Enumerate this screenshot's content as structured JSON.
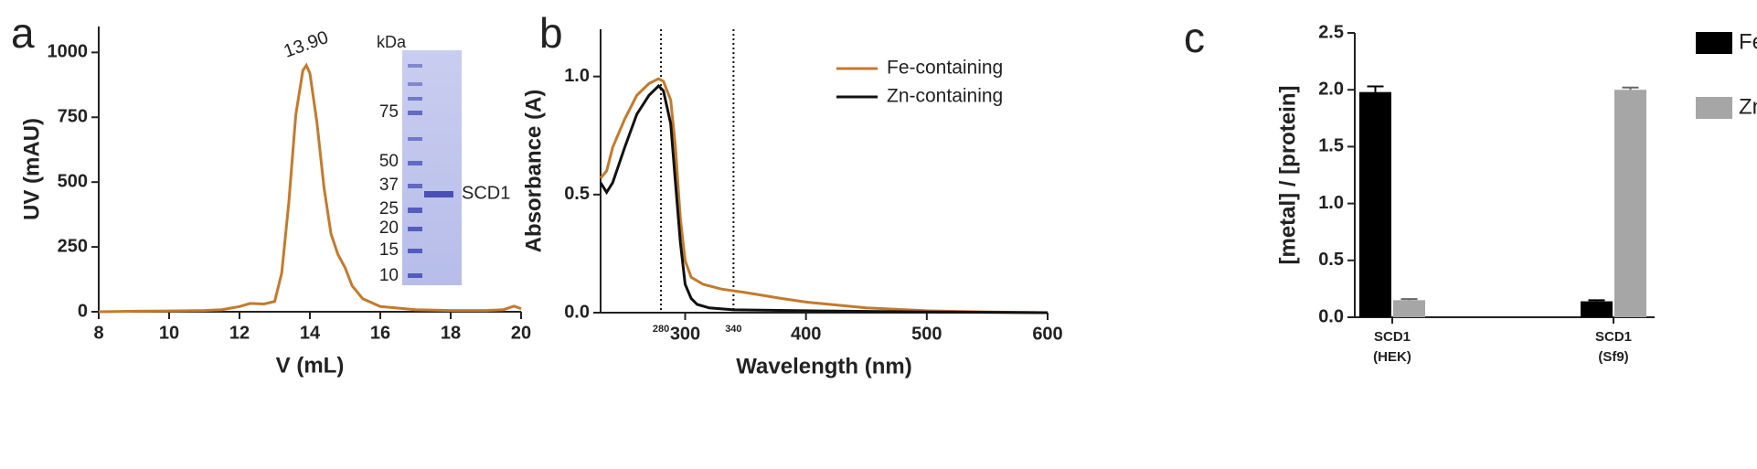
{
  "chart_data": [
    {
      "type": "line",
      "panel_label": "a",
      "x_label": "V (mL)",
      "y_label": "UV (mAU)",
      "xlim": [
        8,
        20
      ],
      "xticks": [
        8,
        10,
        12,
        14,
        16,
        18,
        20
      ],
      "ylim": [
        0,
        1100
      ],
      "yticks": [
        0,
        250,
        500,
        750,
        1000
      ],
      "annotation": "13.90",
      "series": [
        {
          "color": "#c47a2c",
          "x": [
            8,
            9,
            10,
            11,
            11.5,
            12,
            12.3,
            12.7,
            13.0,
            13.2,
            13.4,
            13.6,
            13.8,
            13.9,
            14.0,
            14.2,
            14.4,
            14.6,
            14.8,
            15.0,
            15.2,
            15.5,
            16,
            17,
            18,
            19,
            19.5,
            19.8,
            20
          ],
          "values": [
            0,
            2,
            3,
            5,
            8,
            20,
            32,
            30,
            40,
            150,
            420,
            760,
            930,
            950,
            920,
            730,
            480,
            300,
            220,
            170,
            100,
            50,
            20,
            8,
            5,
            5,
            8,
            22,
            12
          ]
        }
      ],
      "inset": {
        "title": "kDa",
        "markers": [
          75,
          50,
          37,
          25,
          20,
          15,
          10
        ],
        "band_label": "SCD1"
      }
    },
    {
      "type": "line",
      "panel_label": "b",
      "x_label": "Wavelength (nm)",
      "y_label": "Absorbance (A)",
      "xlim": [
        230,
        600
      ],
      "xticks": [
        300,
        400,
        500,
        600
      ],
      "ylim": [
        0,
        1.2
      ],
      "yticks": [
        {
          "value": 0,
          "label": "0.0"
        },
        0.5,
        {
          "value": 1,
          "label": "1.0"
        }
      ],
      "markers": [
        280,
        340
      ],
      "series": [
        {
          "name": "Fe-containing",
          "color": "#c47a2c",
          "x": [
            230,
            235,
            240,
            250,
            260,
            270,
            278,
            282,
            288,
            292,
            296,
            300,
            305,
            315,
            330,
            350,
            380,
            400,
            450,
            500,
            550,
            600
          ],
          "values": [
            0.57,
            0.6,
            0.7,
            0.82,
            0.92,
            0.97,
            0.99,
            0.98,
            0.9,
            0.7,
            0.4,
            0.22,
            0.15,
            0.12,
            0.1,
            0.085,
            0.06,
            0.045,
            0.02,
            0.008,
            0.003,
            0
          ]
        },
        {
          "name": "Zn-containing",
          "color": "#111111",
          "x": [
            230,
            235,
            240,
            250,
            260,
            270,
            278,
            282,
            288,
            292,
            296,
            300,
            305,
            310,
            320,
            340,
            400,
            500,
            600
          ],
          "values": [
            0.55,
            0.51,
            0.55,
            0.7,
            0.84,
            0.92,
            0.96,
            0.94,
            0.8,
            0.55,
            0.3,
            0.12,
            0.06,
            0.035,
            0.02,
            0.012,
            0.008,
            0.003,
            0
          ]
        }
      ]
    },
    {
      "type": "bar",
      "panel_label": "c",
      "y_label": "[metal] / [protein]",
      "categories": [
        [
          "SCD1",
          "(HEK)"
        ],
        [
          "SCD1",
          "(Sf9)"
        ]
      ],
      "ylim": [
        0,
        2.5
      ],
      "yticks": [
        {
          "value": 0,
          "label": "0.0"
        },
        0.5,
        {
          "value": 1,
          "label": "1.0"
        },
        1.5,
        {
          "value": 2,
          "label": "2.0"
        },
        2.5
      ],
      "series": [
        {
          "name": "Fe",
          "color": "#000000",
          "values": [
            1.98,
            0.14
          ],
          "errors": [
            0.05,
            0.01
          ]
        },
        {
          "name": "Zn",
          "color": "#a6a6a6",
          "values": [
            0.15,
            2.0
          ],
          "errors": [
            0.01,
            0.02
          ]
        }
      ]
    }
  ]
}
